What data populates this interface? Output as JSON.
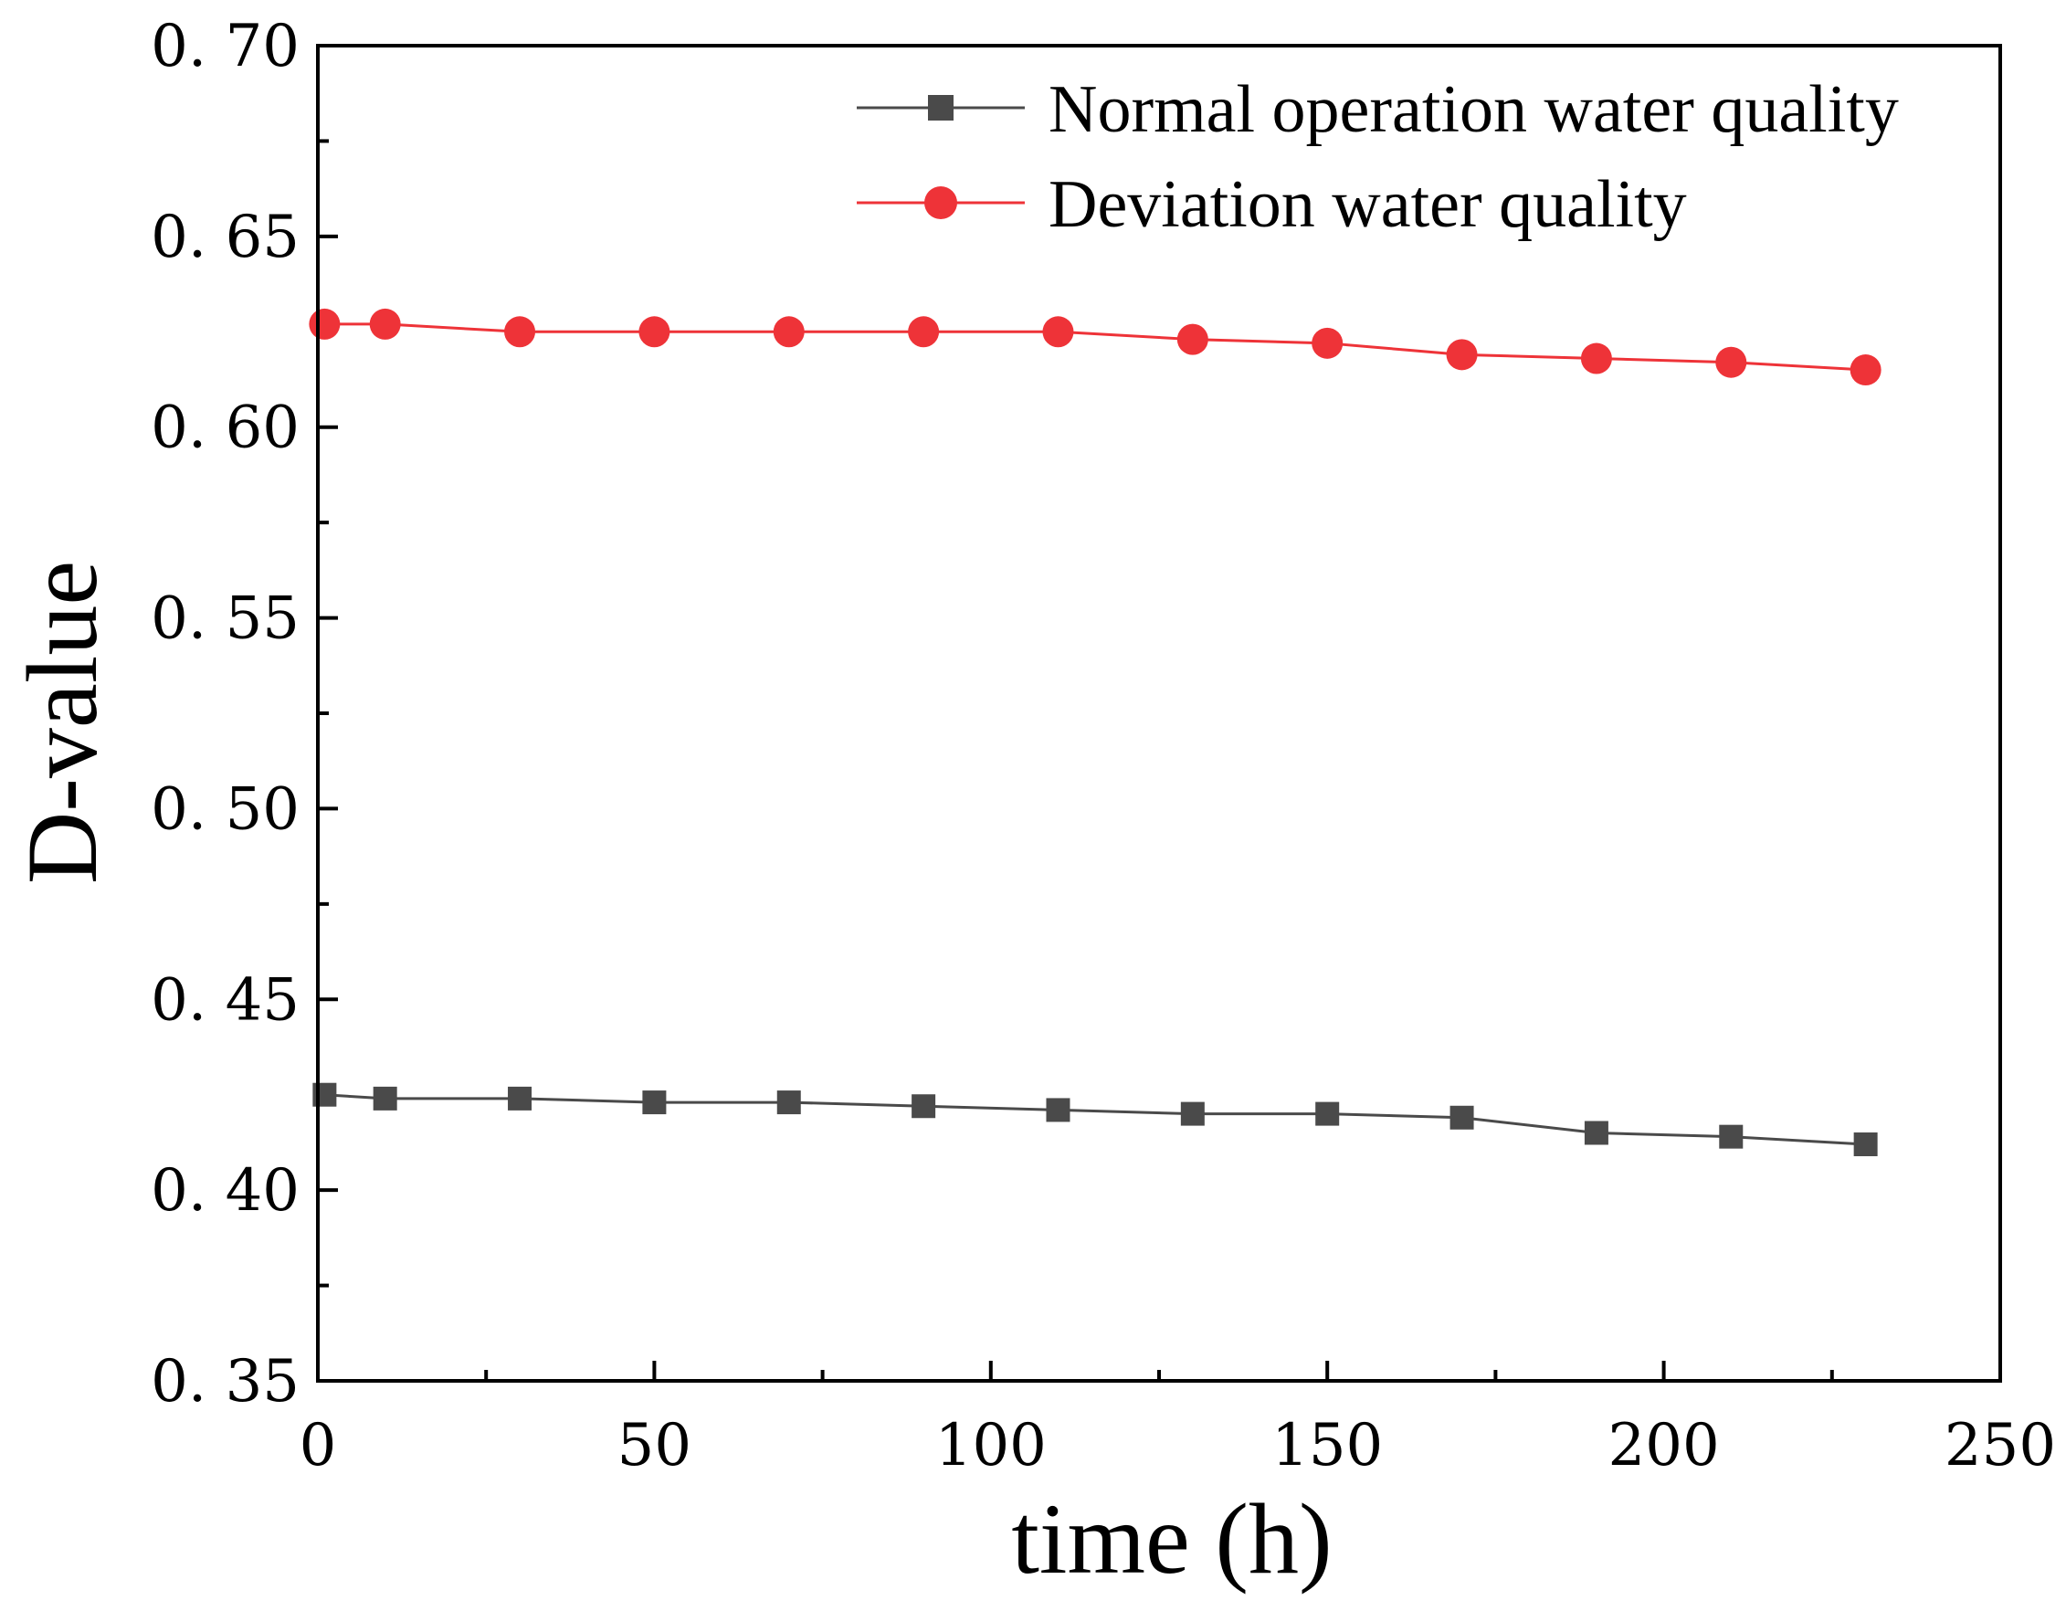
{
  "chart_data": {
    "type": "line",
    "xlabel": "time (h)",
    "ylabel": "D-value",
    "xlim": [
      0,
      250
    ],
    "ylim": [
      0.35,
      0.7
    ],
    "x_ticks": [
      0,
      50,
      100,
      150,
      200,
      250
    ],
    "x_tick_labels": [
      "0",
      "50",
      "100",
      "150",
      "200",
      "250"
    ],
    "y_ticks": [
      0.35,
      0.4,
      0.45,
      0.5,
      0.55,
      0.6,
      0.65,
      0.7
    ],
    "y_tick_labels": [
      "0. 35",
      "0. 40",
      "0. 45",
      "0. 50",
      "0. 55",
      "0. 60",
      "0. 65",
      "0. 70"
    ],
    "grid": false,
    "legend_position": "top-right",
    "x": [
      1,
      10,
      30,
      50,
      70,
      90,
      110,
      130,
      150,
      170,
      190,
      210,
      230
    ],
    "series": [
      {
        "name": "Normal operation water quality",
        "marker": "square",
        "color": "#4a4a4a",
        "values": [
          0.425,
          0.424,
          0.424,
          0.423,
          0.423,
          0.422,
          0.421,
          0.42,
          0.42,
          0.419,
          0.415,
          0.414,
          0.412
        ]
      },
      {
        "name": "Deviation water quality",
        "marker": "circle",
        "color": "#ee3338",
        "values": [
          0.627,
          0.627,
          0.625,
          0.625,
          0.625,
          0.625,
          0.625,
          0.623,
          0.622,
          0.619,
          0.618,
          0.617,
          0.615
        ]
      }
    ]
  }
}
